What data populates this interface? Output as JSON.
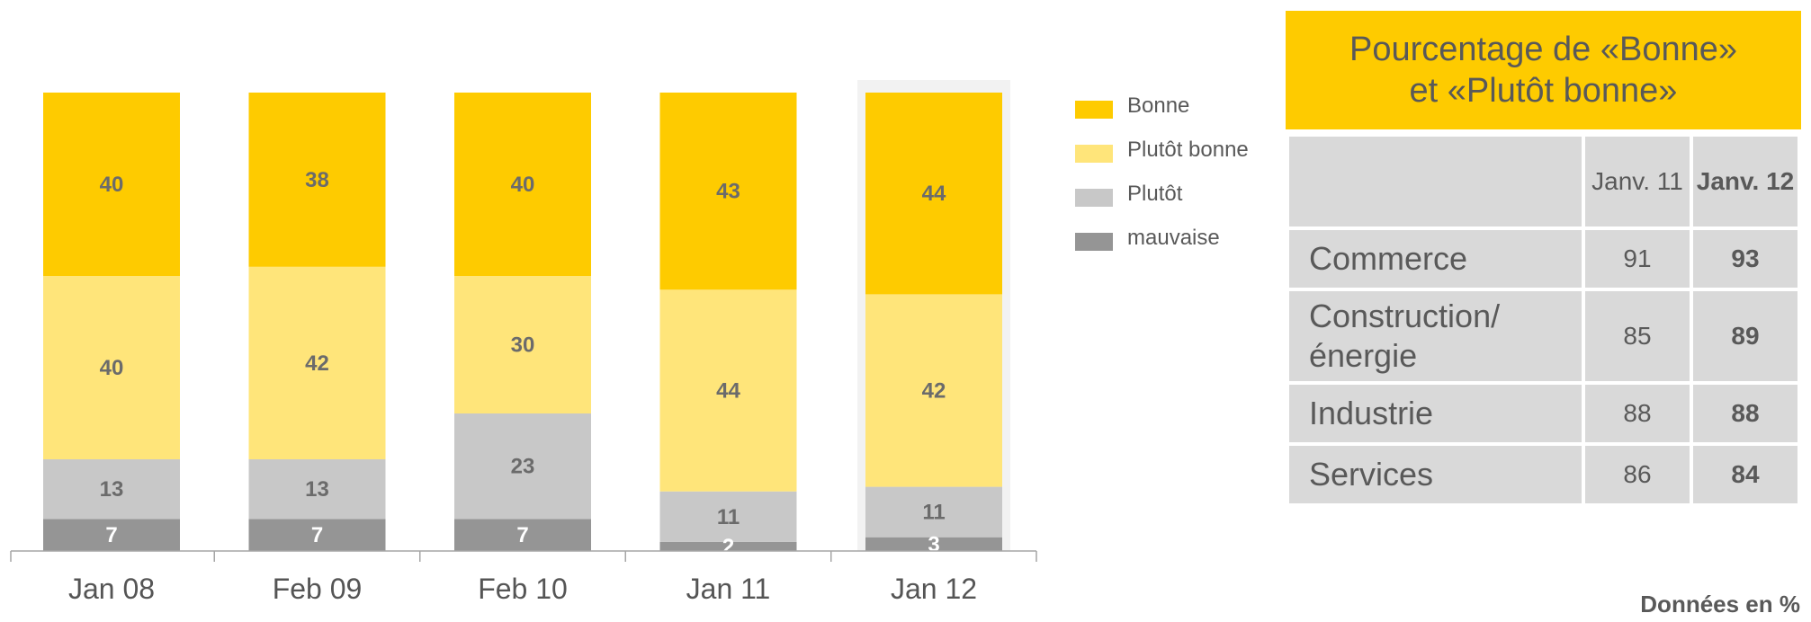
{
  "chart_data": {
    "type": "bar",
    "stacked": true,
    "categories": [
      "Jan 08",
      "Feb 09",
      "Feb 10",
      "Jan 11",
      "Jan 12"
    ],
    "series": [
      {
        "name": "mauvaise",
        "values": [
          7,
          7,
          7,
          2,
          3
        ],
        "color": "#959595",
        "label_color": "#ffffff"
      },
      {
        "name": "Plutôt",
        "values": [
          13,
          13,
          23,
          11,
          11
        ],
        "color": "#c8c8c8",
        "label_color": "#6b6b6b"
      },
      {
        "name": "Plutôt bonne",
        "values": [
          40,
          42,
          30,
          44,
          42
        ],
        "color": "#ffe57a",
        "label_color": "#6b6b6b"
      },
      {
        "name": "Bonne",
        "values": [
          40,
          38,
          40,
          43,
          44
        ],
        "color": "#fecb00",
        "label_color": "#6b6b6b"
      }
    ],
    "highlighted_category": "Jan 12",
    "ylim": [
      0,
      100
    ],
    "grid": false
  },
  "legend": {
    "items": [
      {
        "label": "Bonne",
        "color": "#fecb00"
      },
      {
        "label": "Plutôt bonne",
        "color": "#ffe57a"
      },
      {
        "label": "Plutôt",
        "color": "#c8c8c8"
      },
      {
        "label": "mauvaise",
        "color": "#959595"
      }
    ]
  },
  "summary": {
    "title": "Pourcentage de «Bonne» et «Plutôt bonne»",
    "columns": [
      "Janv. 11",
      "Janv. 12"
    ],
    "rows": [
      {
        "name": "Commerce",
        "v1": "91",
        "v2": "93"
      },
      {
        "name": "Construction/ énergie",
        "v1": "85",
        "v2": "89"
      },
      {
        "name": "Industrie",
        "v1": "88",
        "v2": "88"
      },
      {
        "name": "Services",
        "v1": "86",
        "v2": "84"
      }
    ]
  },
  "footnote": "Données en  %"
}
